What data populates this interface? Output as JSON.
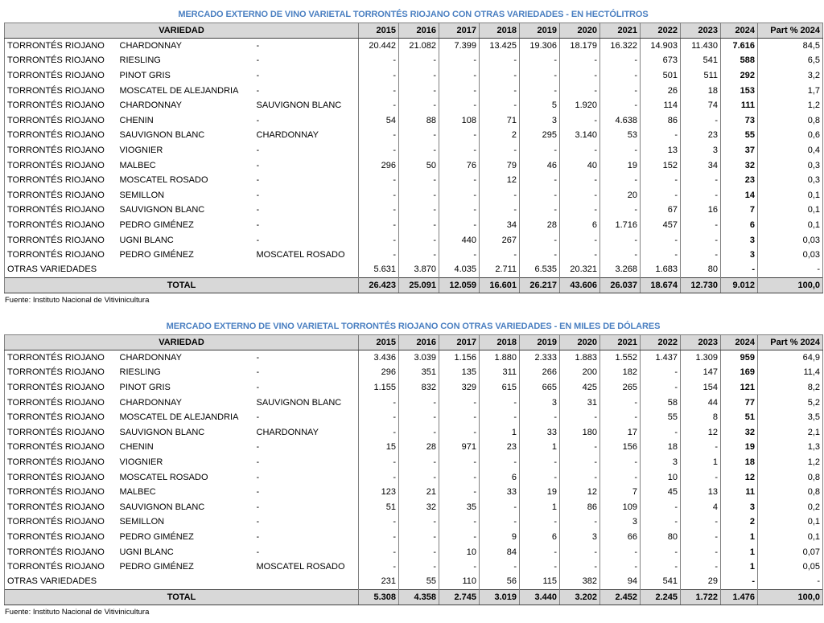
{
  "tables": [
    {
      "title": "MERCADO EXTERNO DE VINO VARIETAL TORRONTÉS RIOJANO CON OTRAS VARIEDADES - EN HECTÓLITROS",
      "header_variedad": "VARIEDAD",
      "years": [
        "2015",
        "2016",
        "2017",
        "2018",
        "2019",
        "2020",
        "2021",
        "2022",
        "2023",
        "2024"
      ],
      "header_part": "Part % 2024",
      "rows": [
        {
          "v1": "TORRONTÉS RIOJANO",
          "v2": "CHARDONNAY",
          "v3": "-",
          "vals": [
            "20.442",
            "21.082",
            "7.399",
            "13.425",
            "19.306",
            "18.179",
            "16.322",
            "14.903",
            "11.430",
            "7.616"
          ],
          "part": "84,5"
        },
        {
          "v1": "TORRONTÉS RIOJANO",
          "v2": "RIESLING",
          "v3": "-",
          "vals": [
            "-",
            "-",
            "-",
            "-",
            "-",
            "-",
            "-",
            "673",
            "541",
            "588"
          ],
          "part": "6,5"
        },
        {
          "v1": "TORRONTÉS RIOJANO",
          "v2": "PINOT GRIS",
          "v3": "-",
          "vals": [
            "-",
            "-",
            "-",
            "-",
            "-",
            "-",
            "-",
            "501",
            "511",
            "292"
          ],
          "part": "3,2"
        },
        {
          "v1": "TORRONTÉS RIOJANO",
          "v2": "MOSCATEL DE ALEJANDRIA",
          "v3": "-",
          "vals": [
            "-",
            "-",
            "-",
            "-",
            "-",
            "-",
            "-",
            "26",
            "18",
            "153"
          ],
          "part": "1,7"
        },
        {
          "v1": "TORRONTÉS RIOJANO",
          "v2": "CHARDONNAY",
          "v3": "SAUVIGNON BLANC",
          "vals": [
            "-",
            "-",
            "-",
            "-",
            "5",
            "1.920",
            "-",
            "114",
            "74",
            "111"
          ],
          "part": "1,2"
        },
        {
          "v1": "TORRONTÉS RIOJANO",
          "v2": "CHENIN",
          "v3": "-",
          "vals": [
            "54",
            "88",
            "108",
            "71",
            "3",
            "-",
            "4.638",
            "86",
            "-",
            "73"
          ],
          "part": "0,8"
        },
        {
          "v1": "TORRONTÉS RIOJANO",
          "v2": "SAUVIGNON BLANC",
          "v3": "CHARDONNAY",
          "vals": [
            "-",
            "-",
            "-",
            "2",
            "295",
            "3.140",
            "53",
            "-",
            "23",
            "55"
          ],
          "part": "0,6"
        },
        {
          "v1": "TORRONTÉS RIOJANO",
          "v2": "VIOGNIER",
          "v3": "-",
          "vals": [
            "-",
            "-",
            "-",
            "-",
            "-",
            "-",
            "-",
            "13",
            "3",
            "37"
          ],
          "part": "0,4"
        },
        {
          "v1": "TORRONTÉS RIOJANO",
          "v2": "MALBEC",
          "v3": "-",
          "vals": [
            "296",
            "50",
            "76",
            "79",
            "46",
            "40",
            "19",
            "152",
            "34",
            "32"
          ],
          "part": "0,3"
        },
        {
          "v1": "TORRONTÉS RIOJANO",
          "v2": "MOSCATEL ROSADO",
          "v3": "-",
          "vals": [
            "-",
            "-",
            "-",
            "12",
            "-",
            "-",
            "-",
            "-",
            "-",
            "23"
          ],
          "part": "0,3"
        },
        {
          "v1": "TORRONTÉS RIOJANO",
          "v2": "SEMILLON",
          "v3": "-",
          "vals": [
            "-",
            "-",
            "-",
            "-",
            "-",
            "-",
            "20",
            "-",
            "-",
            "14"
          ],
          "part": "0,1"
        },
        {
          "v1": "TORRONTÉS RIOJANO",
          "v2": "SAUVIGNON BLANC",
          "v3": "-",
          "vals": [
            "-",
            "-",
            "-",
            "-",
            "-",
            "-",
            "-",
            "67",
            "16",
            "7"
          ],
          "part": "0,1"
        },
        {
          "v1": "TORRONTÉS RIOJANO",
          "v2": "PEDRO GIMÉNEZ",
          "v3": "-",
          "vals": [
            "-",
            "-",
            "-",
            "34",
            "28",
            "6",
            "1.716",
            "457",
            "-",
            "6"
          ],
          "part": "0,1"
        },
        {
          "v1": "TORRONTÉS RIOJANO",
          "v2": "UGNI BLANC",
          "v3": "-",
          "vals": [
            "-",
            "-",
            "440",
            "267",
            "-",
            "-",
            "-",
            "-",
            "-",
            "3"
          ],
          "part": "0,03"
        },
        {
          "v1": "TORRONTÉS RIOJANO",
          "v2": "PEDRO GIMÉNEZ",
          "v3": "MOSCATEL ROSADO",
          "vals": [
            "-",
            "-",
            "-",
            "-",
            "-",
            "-",
            "-",
            "-",
            "-",
            "3"
          ],
          "part": "0,03"
        },
        {
          "v1": "OTRAS VARIEDADES",
          "v2": "",
          "v3": "",
          "vals": [
            "5.631",
            "3.870",
            "4.035",
            "2.711",
            "6.535",
            "20.321",
            "3.268",
            "1.683",
            "80",
            "-"
          ],
          "part": "-"
        }
      ],
      "total_label": "TOTAL",
      "total_vals": [
        "26.423",
        "25.091",
        "12.059",
        "16.601",
        "26.217",
        "43.606",
        "26.037",
        "18.674",
        "12.730",
        "9.012"
      ],
      "total_part": "100,0",
      "source": "Fuente: Instituto Nacional de Vitivinicultura"
    },
    {
      "title": "MERCADO EXTERNO DE VINO VARIETAL TORRONTÉS RIOJANO CON OTRAS VARIEDADES - EN MILES DE DÓLARES",
      "header_variedad": "VARIEDAD",
      "years": [
        "2015",
        "2016",
        "2017",
        "2018",
        "2019",
        "2020",
        "2021",
        "2022",
        "2023",
        "2024"
      ],
      "header_part": "Part % 2024",
      "rows": [
        {
          "v1": "TORRONTÉS RIOJANO",
          "v2": "CHARDONNAY",
          "v3": "-",
          "vals": [
            "3.436",
            "3.039",
            "1.156",
            "1.880",
            "2.333",
            "1.883",
            "1.552",
            "1.437",
            "1.309",
            "959"
          ],
          "part": "64,9"
        },
        {
          "v1": "TORRONTÉS RIOJANO",
          "v2": "RIESLING",
          "v3": "-",
          "vals": [
            "296",
            "351",
            "135",
            "311",
            "266",
            "200",
            "182",
            "-",
            "147",
            "169"
          ],
          "part": "11,4"
        },
        {
          "v1": "TORRONTÉS RIOJANO",
          "v2": "PINOT GRIS",
          "v3": "-",
          "vals": [
            "1.155",
            "832",
            "329",
            "615",
            "665",
            "425",
            "265",
            "-",
            "154",
            "121"
          ],
          "part": "8,2"
        },
        {
          "v1": "TORRONTÉS RIOJANO",
          "v2": "CHARDONNAY",
          "v3": "SAUVIGNON BLANC",
          "vals": [
            "-",
            "-",
            "-",
            "-",
            "3",
            "31",
            "-",
            "58",
            "44",
            "77"
          ],
          "part": "5,2"
        },
        {
          "v1": "TORRONTÉS RIOJANO",
          "v2": "MOSCATEL DE ALEJANDRIA",
          "v3": "-",
          "vals": [
            "-",
            "-",
            "-",
            "-",
            "-",
            "-",
            "-",
            "55",
            "8",
            "51"
          ],
          "part": "3,5"
        },
        {
          "v1": "TORRONTÉS RIOJANO",
          "v2": "SAUVIGNON BLANC",
          "v3": "CHARDONNAY",
          "vals": [
            "-",
            "-",
            "-",
            "1",
            "33",
            "180",
            "17",
            "-",
            "12",
            "32"
          ],
          "part": "2,1"
        },
        {
          "v1": "TORRONTÉS RIOJANO",
          "v2": "CHENIN",
          "v3": "-",
          "vals": [
            "15",
            "28",
            "971",
            "23",
            "1",
            "-",
            "156",
            "18",
            "-",
            "19"
          ],
          "part": "1,3"
        },
        {
          "v1": "TORRONTÉS RIOJANO",
          "v2": "VIOGNIER",
          "v3": "-",
          "vals": [
            "-",
            "-",
            "-",
            "-",
            "-",
            "-",
            "-",
            "3",
            "1",
            "18"
          ],
          "part": "1,2"
        },
        {
          "v1": "TORRONTÉS RIOJANO",
          "v2": "MOSCATEL ROSADO",
          "v3": "-",
          "vals": [
            "-",
            "-",
            "-",
            "6",
            "-",
            "-",
            "-",
            "10",
            "-",
            "12"
          ],
          "part": "0,8"
        },
        {
          "v1": "TORRONTÉS RIOJANO",
          "v2": "MALBEC",
          "v3": "-",
          "vals": [
            "123",
            "21",
            "-",
            "33",
            "19",
            "12",
            "7",
            "45",
            "13",
            "11"
          ],
          "part": "0,8"
        },
        {
          "v1": "TORRONTÉS RIOJANO",
          "v2": "SAUVIGNON BLANC",
          "v3": "-",
          "vals": [
            "51",
            "32",
            "35",
            "-",
            "1",
            "86",
            "109",
            "-",
            "4",
            "3"
          ],
          "part": "0,2"
        },
        {
          "v1": "TORRONTÉS RIOJANO",
          "v2": "SEMILLON",
          "v3": "-",
          "vals": [
            "-",
            "-",
            "-",
            "-",
            "-",
            "-",
            "3",
            "-",
            "-",
            "2"
          ],
          "part": "0,1"
        },
        {
          "v1": "TORRONTÉS RIOJANO",
          "v2": "PEDRO GIMÉNEZ",
          "v3": "-",
          "vals": [
            "-",
            "-",
            "-",
            "9",
            "6",
            "3",
            "66",
            "80",
            "-",
            "1"
          ],
          "part": "0,1"
        },
        {
          "v1": "TORRONTÉS RIOJANO",
          "v2": "UGNI BLANC",
          "v3": "-",
          "vals": [
            "-",
            "-",
            "10",
            "84",
            "-",
            "-",
            "-",
            "-",
            "-",
            "1"
          ],
          "part": "0,07"
        },
        {
          "v1": "TORRONTÉS RIOJANO",
          "v2": "PEDRO GIMÉNEZ",
          "v3": "MOSCATEL ROSADO",
          "vals": [
            "-",
            "-",
            "-",
            "-",
            "-",
            "-",
            "-",
            "-",
            "-",
            "1"
          ],
          "part": "0,05"
        },
        {
          "v1": "OTRAS VARIEDADES",
          "v2": "",
          "v3": "",
          "vals": [
            "231",
            "55",
            "110",
            "56",
            "115",
            "382",
            "94",
            "541",
            "29",
            "-"
          ],
          "part": "-"
        }
      ],
      "total_label": "TOTAL",
      "total_vals": [
        "5.308",
        "4.358",
        "2.745",
        "3.019",
        "3.440",
        "3.202",
        "2.452",
        "2.245",
        "1.722",
        "1.476"
      ],
      "total_part": "100,0",
      "source": "Fuente: Instituto Nacional de Vitivinicultura"
    }
  ]
}
